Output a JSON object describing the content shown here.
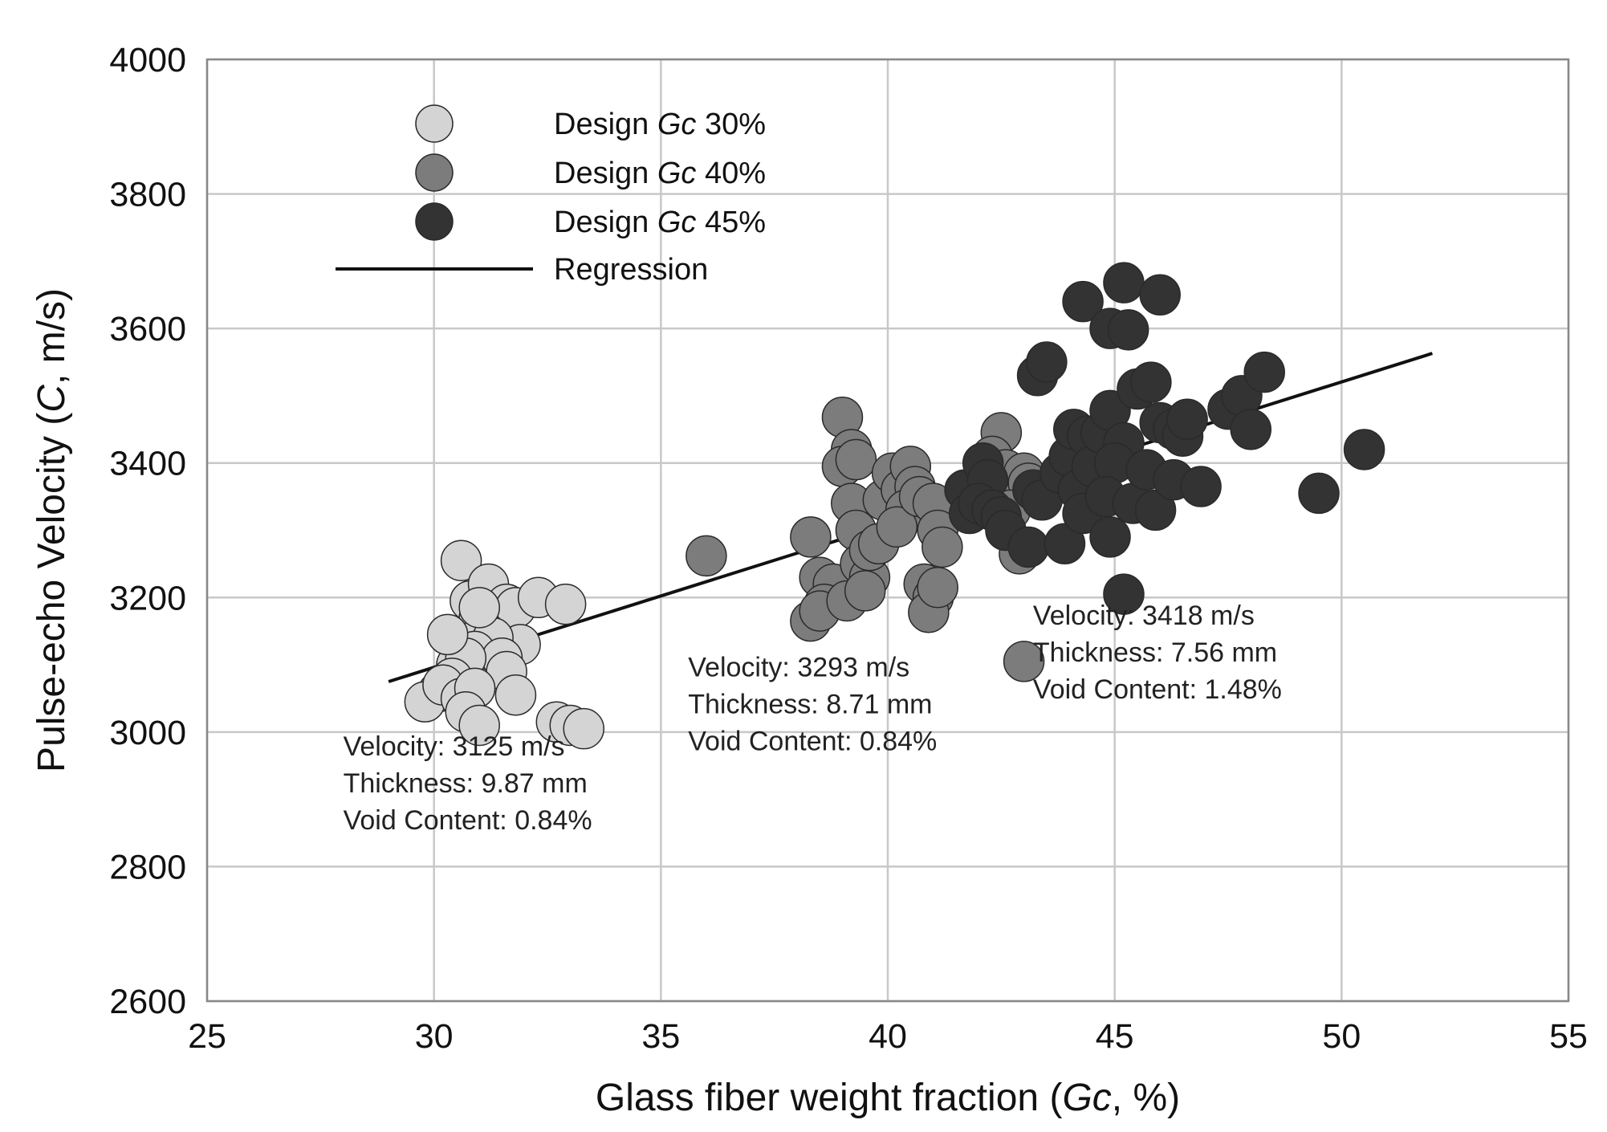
{
  "chart_data": {
    "type": "scatter",
    "xlabel": {
      "prefix": "Glass fiber weight fraction (",
      "italic": "Gc",
      "suffix": ", %)"
    },
    "ylabel": {
      "prefix": "Pulse-echo Velocity (",
      "italic": "C",
      "suffix": ", m/s)"
    },
    "xlim": [
      25,
      55
    ],
    "ylim": [
      2600,
      4000
    ],
    "xticks": [
      25,
      30,
      35,
      40,
      45,
      50,
      55
    ],
    "yticks": [
      2600,
      2800,
      3000,
      3200,
      3400,
      3600,
      3800,
      4000
    ],
    "grid": true,
    "legend_position": "top-left",
    "series": [
      {
        "name": {
          "prefix": "Design ",
          "italic": "Gc",
          "suffix": " 30%"
        },
        "color": "#d4d4d4",
        "points": [
          [
            30.6,
            3255
          ],
          [
            30.8,
            3195
          ],
          [
            31.2,
            3220
          ],
          [
            31.0,
            3170
          ],
          [
            31.4,
            3180
          ],
          [
            31.6,
            3190
          ],
          [
            31.8,
            3185
          ],
          [
            31.1,
            3150
          ],
          [
            31.9,
            3130
          ],
          [
            31.3,
            3140
          ],
          [
            30.9,
            3120
          ],
          [
            31.5,
            3110
          ],
          [
            30.5,
            3100
          ],
          [
            30.7,
            3110
          ],
          [
            31.6,
            3090
          ],
          [
            32.3,
            3200
          ],
          [
            32.9,
            3190
          ],
          [
            30.3,
            3145
          ],
          [
            31.0,
            3185
          ],
          [
            30.4,
            3080
          ],
          [
            30.1,
            3060
          ],
          [
            29.8,
            3045
          ],
          [
            30.2,
            3070
          ],
          [
            30.6,
            3050
          ],
          [
            30.9,
            3065
          ],
          [
            31.8,
            3055
          ],
          [
            30.7,
            3030
          ],
          [
            31.0,
            3010
          ],
          [
            32.7,
            3015
          ],
          [
            33.0,
            3010
          ],
          [
            33.3,
            3005
          ]
        ]
      },
      {
        "name": {
          "prefix": "Design ",
          "italic": "Gc",
          "suffix": " 40%"
        },
        "color": "#7c7c7c",
        "points": [
          [
            36.0,
            3262
          ],
          [
            38.3,
            3290
          ],
          [
            38.5,
            3230
          ],
          [
            38.8,
            3220
          ],
          [
            38.6,
            3190
          ],
          [
            38.3,
            3165
          ],
          [
            38.5,
            3180
          ],
          [
            39.1,
            3195
          ],
          [
            39.0,
            3468
          ],
          [
            39.2,
            3420
          ],
          [
            39.0,
            3395
          ],
          [
            39.3,
            3405
          ],
          [
            39.2,
            3340
          ],
          [
            39.3,
            3300
          ],
          [
            39.4,
            3250
          ],
          [
            39.6,
            3230
          ],
          [
            39.5,
            3210
          ],
          [
            39.6,
            3270
          ],
          [
            39.8,
            3280
          ],
          [
            39.9,
            3345
          ],
          [
            40.1,
            3385
          ],
          [
            40.3,
            3360
          ],
          [
            40.5,
            3395
          ],
          [
            40.6,
            3365
          ],
          [
            40.4,
            3330
          ],
          [
            40.2,
            3305
          ],
          [
            40.7,
            3350
          ],
          [
            41.0,
            3340
          ],
          [
            41.1,
            3300
          ],
          [
            41.2,
            3275
          ],
          [
            40.8,
            3220
          ],
          [
            41.0,
            3200
          ],
          [
            40.9,
            3178
          ],
          [
            41.1,
            3215
          ],
          [
            42.5,
            3445
          ],
          [
            42.3,
            3410
          ],
          [
            42.6,
            3390
          ],
          [
            42.8,
            3360
          ],
          [
            43.0,
            3385
          ],
          [
            43.1,
            3370
          ],
          [
            42.7,
            3330
          ],
          [
            42.9,
            3265
          ],
          [
            43.0,
            3105
          ]
        ]
      },
      {
        "name": {
          "prefix": "Design ",
          "italic": "Gc",
          "suffix": " 45%"
        },
        "color": "#333333",
        "points": [
          [
            41.7,
            3360
          ],
          [
            41.8,
            3325
          ],
          [
            42.1,
            3400
          ],
          [
            42.2,
            3375
          ],
          [
            42.0,
            3340
          ],
          [
            42.3,
            3330
          ],
          [
            42.5,
            3320
          ],
          [
            42.6,
            3300
          ],
          [
            43.3,
            3530
          ],
          [
            43.5,
            3550
          ],
          [
            43.2,
            3360
          ],
          [
            43.4,
            3345
          ],
          [
            43.1,
            3275
          ],
          [
            43.9,
            3280
          ],
          [
            43.8,
            3385
          ],
          [
            44.0,
            3410
          ],
          [
            44.2,
            3360
          ],
          [
            44.1,
            3450
          ],
          [
            44.4,
            3440
          ],
          [
            44.5,
            3395
          ],
          [
            44.3,
            3325
          ],
          [
            44.9,
            3290
          ],
          [
            44.3,
            3640
          ],
          [
            44.9,
            3600
          ],
          [
            45.2,
            3668
          ],
          [
            45.3,
            3598
          ],
          [
            46.0,
            3650
          ],
          [
            44.7,
            3445
          ],
          [
            44.9,
            3478
          ],
          [
            45.2,
            3430
          ],
          [
            45.0,
            3400
          ],
          [
            44.8,
            3350
          ],
          [
            45.4,
            3340
          ],
          [
            45.7,
            3390
          ],
          [
            45.9,
            3330
          ],
          [
            45.5,
            3510
          ],
          [
            45.8,
            3520
          ],
          [
            46.0,
            3460
          ],
          [
            46.3,
            3450
          ],
          [
            46.5,
            3440
          ],
          [
            46.6,
            3465
          ],
          [
            46.3,
            3375
          ],
          [
            46.9,
            3365
          ],
          [
            47.5,
            3480
          ],
          [
            47.8,
            3500
          ],
          [
            48.0,
            3450
          ],
          [
            48.3,
            3535
          ],
          [
            49.5,
            3355
          ],
          [
            50.5,
            3420
          ],
          [
            45.2,
            3205
          ]
        ]
      }
    ],
    "regression": {
      "name": "Regression",
      "x": [
        29.0,
        52.0
      ],
      "y": [
        3075,
        3563
      ]
    },
    "annotations": [
      {
        "x": 28.0,
        "y": 2965,
        "lines": [
          "Velocity: 3125 m/s",
          "Thickness:  9.87 mm",
          "Void Content:  0.84%"
        ]
      },
      {
        "x": 35.6,
        "y": 3083,
        "lines": [
          "Velocity: 3293 m/s",
          "Thickness:  8.71 mm",
          "Void Content:  0.84%"
        ]
      },
      {
        "x": 43.2,
        "y": 3160,
        "lines": [
          "Velocity: 3418 m/s",
          "Thickness:  7.56 mm",
          "Void Content:  1.48%"
        ]
      }
    ]
  }
}
